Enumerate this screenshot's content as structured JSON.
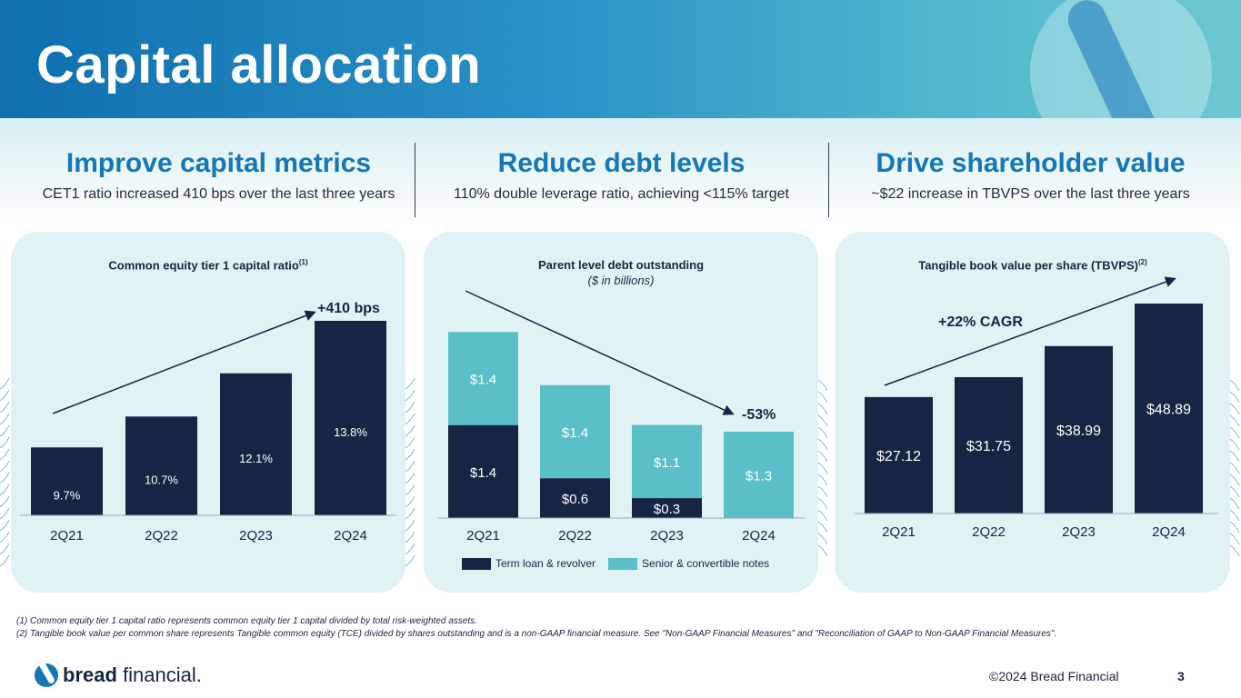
{
  "title": "Capital allocation",
  "colors": {
    "navy": "#162544",
    "teal": "#5bbfc9",
    "blue": "#1677b8",
    "panel": "#e1f2f4"
  },
  "sections": [
    {
      "heading": "Improve capital metrics",
      "sub": "CET1 ratio increased 410 bps over the last three years"
    },
    {
      "heading": "Reduce debt levels",
      "sub": "110% double leverage ratio, achieving <115% target"
    },
    {
      "heading": "Drive shareholder value",
      "sub": "~$22 increase in TBVPS over the last three years"
    }
  ],
  "chart_titles": {
    "cet1": "Common equity tier 1 capital ratio",
    "cet1_sup": "(1)",
    "debt": "Parent level debt outstanding",
    "debt_sub": "($ in billions)",
    "tbvps": "Tangible book value per share (TBVPS)",
    "tbvps_sup": "(2)"
  },
  "chart_data": [
    {
      "type": "bar",
      "title": "Common equity tier 1 capital ratio",
      "categories": [
        "2Q21",
        "2Q22",
        "2Q23",
        "2Q24"
      ],
      "values": [
        9.7,
        10.7,
        12.1,
        13.8
      ],
      "labels": [
        "9.7%",
        "10.7%",
        "12.1%",
        "13.8%"
      ],
      "annotation": "+410 bps",
      "ylim": [
        7.5,
        14
      ]
    },
    {
      "type": "bar",
      "stacked": true,
      "title": "Parent level debt outstanding",
      "subtitle": "($ in billions)",
      "categories": [
        "2Q21",
        "2Q22",
        "2Q23",
        "2Q24"
      ],
      "series": [
        {
          "name": "Term loan & revolver",
          "values": [
            1.4,
            0.6,
            0.3,
            0
          ],
          "labels": [
            "$1.4",
            "$0.6",
            "$0.3",
            ""
          ]
        },
        {
          "name": "Senior & convertible notes",
          "values": [
            1.4,
            1.4,
            1.1,
            1.3
          ],
          "labels": [
            "$1.4",
            "$1.4",
            "$1.1",
            "$1.3"
          ]
        }
      ],
      "annotation": "-53%",
      "ylim": [
        0,
        2.9
      ]
    },
    {
      "type": "bar",
      "title": "Tangible book value per share (TBVPS)",
      "categories": [
        "2Q21",
        "2Q22",
        "2Q23",
        "2Q24"
      ],
      "values": [
        27.12,
        31.75,
        38.99,
        48.89
      ],
      "labels": [
        "$27.12",
        "$31.75",
        "$38.99",
        "$48.89"
      ],
      "annotation": "+22% CAGR",
      "ylim": [
        0,
        51
      ]
    }
  ],
  "footnotes": [
    "(1) Common equity tier 1 capital ratio represents common equity tier 1 capital divided by total risk-weighted assets.",
    "(2) Tangible book value per common share represents Tangible common equity (TCE) divided by shares outstanding and is a non-GAAP financial measure. See \"Non-GAAP Financial Measures\" and \"Reconciliation of GAAP to Non-GAAP Financial Measures\"."
  ],
  "brand": {
    "bold": "bread",
    "rest": " financial."
  },
  "copyright": "©2024 Bread Financial",
  "page_number": "3"
}
